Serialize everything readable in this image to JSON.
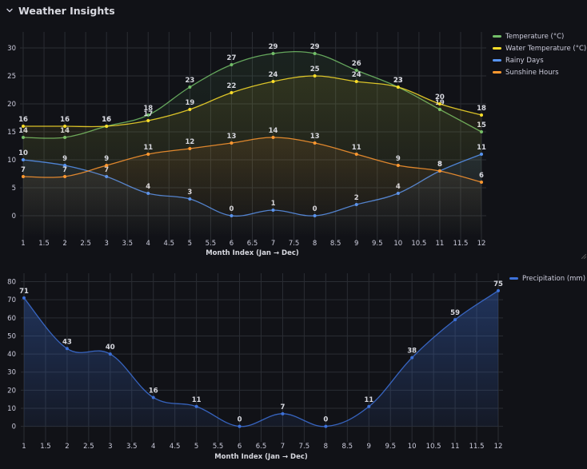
{
  "row": {
    "title": "Weather Insights"
  },
  "colors": {
    "background": "#111217",
    "grid": "#2a2d33",
    "tick_text": "#ccccdc",
    "label_text": "#d8d9e0"
  },
  "icons": {
    "collapse": "chevron-down-icon"
  },
  "chart_data": [
    {
      "type": "line",
      "xlabel": "Month Index (Jan → Dec)",
      "ylabel": "",
      "x": [
        1,
        2,
        3,
        4,
        5,
        6,
        7,
        8,
        9,
        10,
        11,
        12
      ],
      "xlim": [
        1,
        12
      ],
      "ylim": [
        -4,
        32
      ],
      "x_ticks": [
        "1",
        "1.5",
        "2",
        "2.5",
        "3",
        "3.5",
        "4",
        "4.5",
        "5",
        "5.5",
        "6",
        "6.5",
        "7",
        "7.5",
        "8",
        "8.5",
        "9",
        "9.5",
        "10",
        "10.5",
        "11",
        "11.5",
        "12"
      ],
      "y_ticks": [
        "0",
        "5",
        "10",
        "15",
        "20",
        "25",
        "30"
      ],
      "grid": true,
      "legend_position": "right",
      "data_labels": true,
      "series": [
        {
          "name": "Temperature (°C)",
          "color": "#73bf69",
          "values": [
            14,
            14,
            16,
            18,
            23,
            27,
            29,
            29,
            26,
            23,
            19,
            15
          ]
        },
        {
          "name": "Water Temperature (°C)",
          "color": "#fade2a",
          "values": [
            16,
            16,
            16,
            17,
            19,
            22,
            24,
            25,
            24,
            23,
            20,
            18
          ]
        },
        {
          "name": "Rainy Days",
          "color": "#5794f2",
          "values": [
            10,
            9,
            7,
            4,
            3,
            0,
            1,
            0,
            2,
            4,
            8,
            11
          ]
        },
        {
          "name": "Sunshine Hours",
          "color": "#ff9830",
          "values": [
            7,
            7,
            9,
            11,
            12,
            13,
            14,
            13,
            11,
            9,
            8,
            6
          ]
        }
      ]
    },
    {
      "type": "area",
      "xlabel": "Month Index (Jan → Dec)",
      "ylabel": "",
      "x": [
        1,
        2,
        3,
        4,
        5,
        6,
        7,
        8,
        9,
        10,
        11,
        12
      ],
      "xlim": [
        1,
        12
      ],
      "ylim": [
        -5,
        82
      ],
      "x_ticks": [
        "1",
        "1.5",
        "2",
        "2.5",
        "3",
        "3.5",
        "4",
        "4.5",
        "5",
        "5.5",
        "6",
        "6.5",
        "7",
        "7.5",
        "8",
        "8.5",
        "9",
        "9.5",
        "10",
        "10.5",
        "11",
        "11.5",
        "12"
      ],
      "y_ticks": [
        "0",
        "10",
        "20",
        "30",
        "40",
        "50",
        "60",
        "70",
        "80"
      ],
      "grid": true,
      "legend_position": "right",
      "data_labels": true,
      "series": [
        {
          "name": "Precipitation (mm)",
          "color": "#3d71d9",
          "values": [
            71,
            43,
            40,
            16,
            11,
            0,
            7,
            0,
            11,
            38,
            59,
            75
          ]
        }
      ]
    }
  ]
}
